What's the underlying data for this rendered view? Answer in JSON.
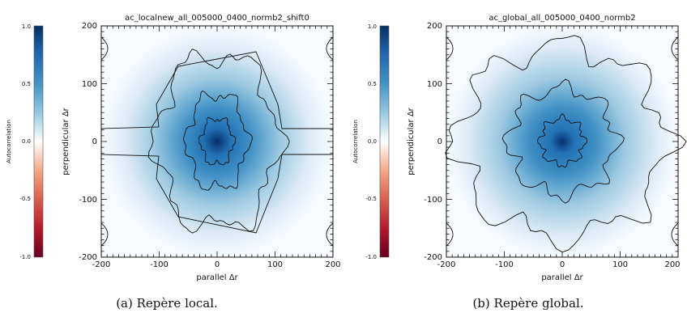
{
  "chart_data": [
    {
      "type": "heatmap",
      "title": "ac_localnew_all_005000_0400_normb2_shift0",
      "xlabel": "parallel Δr",
      "ylabel": "perpendicular Δr",
      "xlim": [
        -200,
        200
      ],
      "ylim": [
        -200,
        200
      ],
      "x_ticks": [
        -200,
        -100,
        0,
        100,
        200
      ],
      "y_ticks": [
        -200,
        -100,
        0,
        100,
        200
      ],
      "colorbar": {
        "label": "Autocorrelation",
        "range": [
          -1.0,
          1.0
        ],
        "ticks": [
          "1.0",
          "0.5",
          "0.0",
          "-0.5",
          "-1.0"
        ],
        "tick_values": [
          1.0,
          0.5,
          0.0,
          -0.5,
          -1.0
        ],
        "colors": {
          "negative": "#67001f",
          "zero": "#ffffff",
          "positive": "#053061"
        }
      },
      "caption": "(a) Repère local.",
      "contour_half_extent_x": [
        200,
        105,
        52,
        28
      ],
      "contour_half_extent_y": [
        0,
        150,
        82,
        40
      ]
    },
    {
      "type": "heatmap",
      "title": "ac_global_all_005000_0400_normb2",
      "xlabel": "parallel Δr",
      "ylabel": "perpendicular Δr",
      "xlim": [
        -200,
        200
      ],
      "ylim": [
        -200,
        200
      ],
      "x_ticks": [
        -200,
        -100,
        0,
        100,
        200
      ],
      "y_ticks": [
        -200,
        -100,
        0,
        100,
        200
      ],
      "colorbar": {
        "label": "Autocorrelation",
        "range": [
          -1.0,
          1.0
        ],
        "ticks": [
          "1.0",
          "0.5",
          "0.0",
          "-0.5",
          "-1.0"
        ],
        "tick_values": [
          1.0,
          0.5,
          0.0,
          -0.5,
          -1.0
        ],
        "colors": {
          "negative": "#67001f",
          "zero": "#ffffff",
          "positive": "#053061"
        }
      },
      "caption": "(b) Repère global.",
      "contour_half_extent_x": [
        180,
        92,
        38
      ],
      "contour_half_extent_y": [
        165,
        92,
        40
      ]
    }
  ]
}
